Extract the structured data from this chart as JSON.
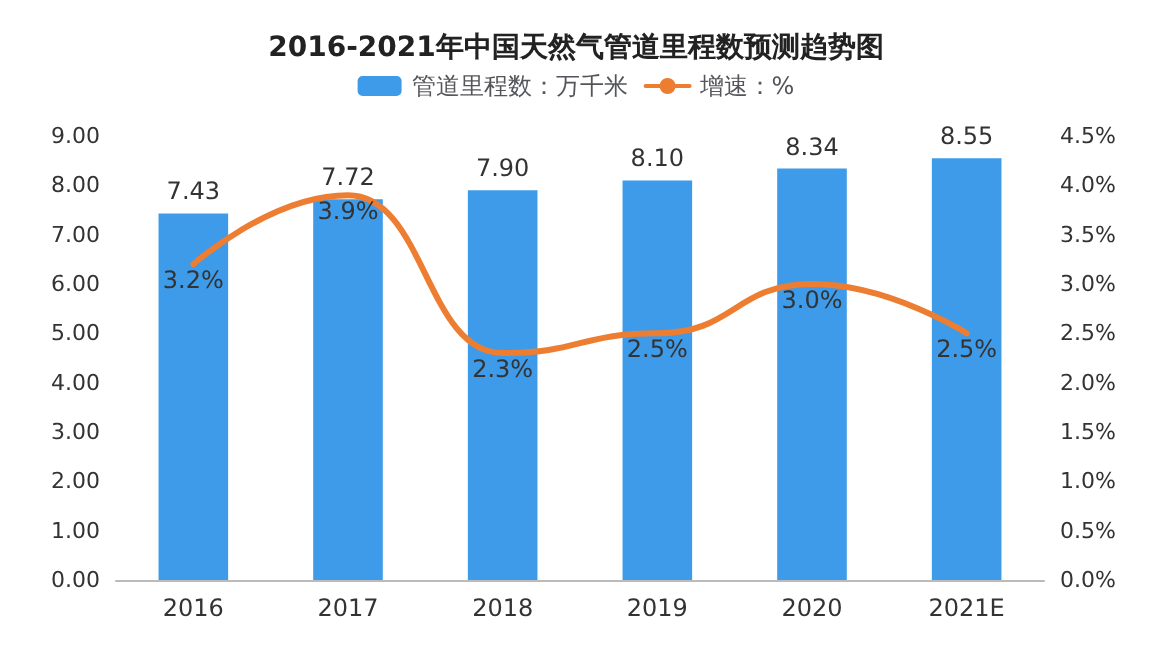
{
  "chart_data": {
    "type": "bar",
    "title": "2016-2021年中国天然气管道里程数预测趋势图",
    "categories": [
      "2016",
      "2017",
      "2018",
      "2019",
      "2020",
      "2021E"
    ],
    "series": [
      {
        "name": "管道里程数：万千米",
        "color": "#3d9be9",
        "values": [
          7.43,
          7.72,
          7.9,
          8.1,
          8.34,
          8.55
        ],
        "value_labels": [
          "7.43",
          "7.72",
          "7.90",
          "8.10",
          "8.34",
          "8.55"
        ]
      },
      {
        "name": "增速：%",
        "type": "line",
        "axis": "y2",
        "color": "#ed7d31",
        "marker": "none",
        "values": [
          3.2,
          3.9,
          2.3,
          2.5,
          3.0,
          2.5
        ],
        "value_labels": [
          "3.2%",
          "3.9%",
          "2.3%",
          "2.5%",
          "3.0%",
          "2.5%"
        ]
      }
    ],
    "ylim": [
      0,
      9
    ],
    "yticks": [
      {
        "value": 0,
        "label": "0.00"
      },
      {
        "value": 1,
        "label": "1.00"
      },
      {
        "value": 2,
        "label": "2.00"
      },
      {
        "value": 3,
        "label": "3.00"
      },
      {
        "value": 4,
        "label": "4.00"
      },
      {
        "value": 5,
        "label": "5.00"
      },
      {
        "value": 6,
        "label": "6.00"
      },
      {
        "value": 7,
        "label": "7.00"
      },
      {
        "value": 8,
        "label": "8.00"
      },
      {
        "value": 9,
        "label": "9.00"
      }
    ],
    "y2lim": [
      0,
      4.5
    ],
    "y2ticks": [
      {
        "value": 0,
        "label": "0.0%"
      },
      {
        "value": 0.5,
        "label": "0.5%"
      },
      {
        "value": 1,
        "label": "1.0%"
      },
      {
        "value": 1.5,
        "label": "1.5%"
      },
      {
        "value": 2,
        "label": "2.0%"
      },
      {
        "value": 2.5,
        "label": "2.5%"
      },
      {
        "value": 3,
        "label": "3.0%"
      },
      {
        "value": 3.5,
        "label": "3.5%"
      },
      {
        "value": 4,
        "label": "4.0%"
      },
      {
        "value": 4.5,
        "label": "4.5%"
      }
    ],
    "legend": "top",
    "grid": false
  }
}
